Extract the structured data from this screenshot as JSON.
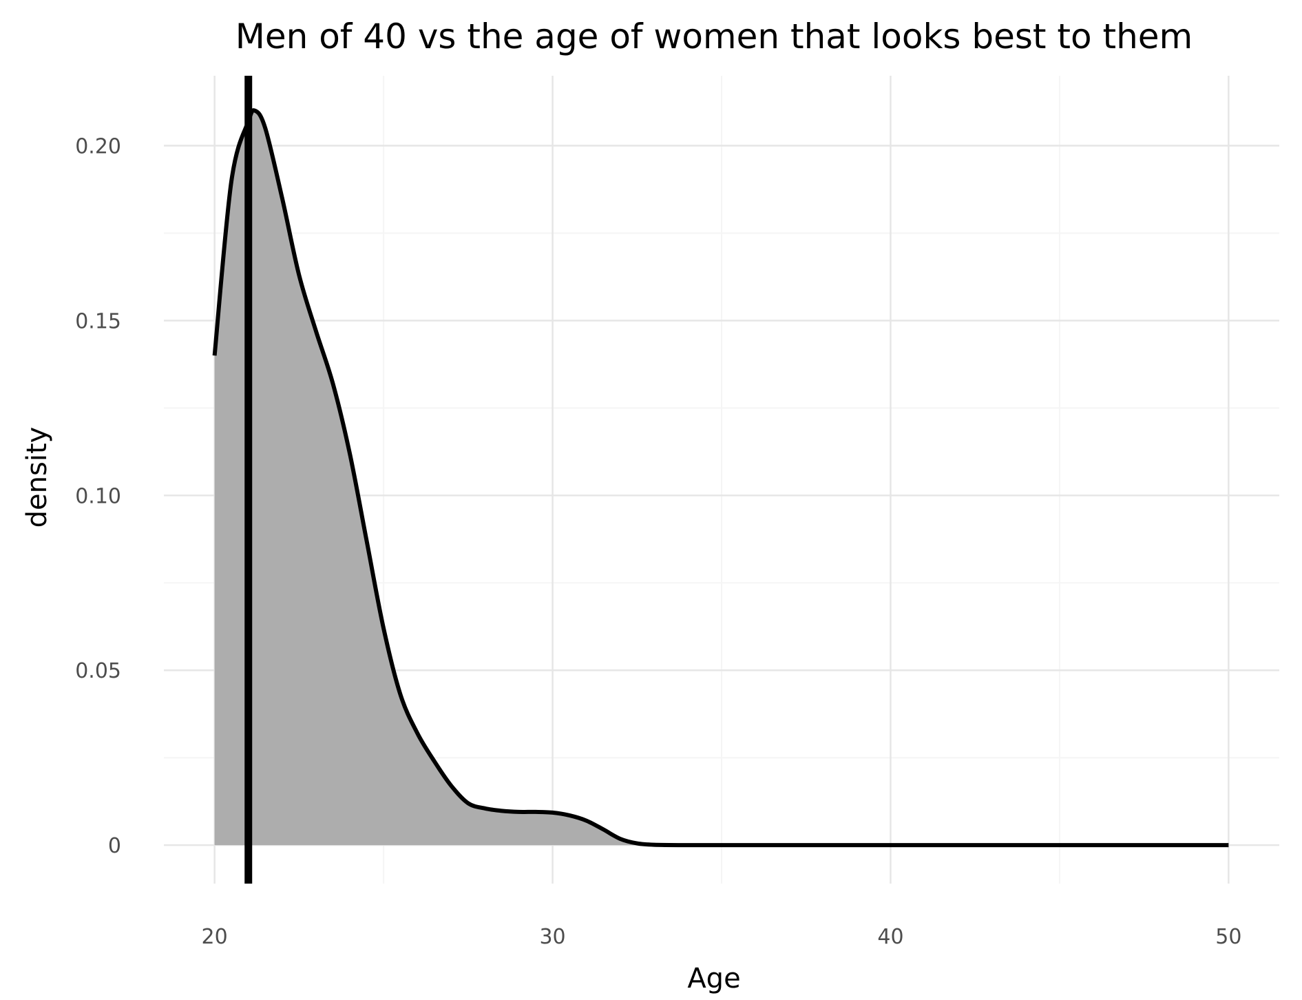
{
  "chart_data": {
    "type": "area",
    "title": "Men of 40 vs the age of women that looks best to them",
    "xlabel": "Age",
    "ylabel": "density",
    "xlim": [
      20,
      50
    ],
    "ylim": [
      -0.011,
      0.22
    ],
    "x_ticks": [
      20,
      30,
      40,
      50
    ],
    "x_tick_labels": [
      "20",
      "30",
      "40",
      "50"
    ],
    "y_ticks": [
      0,
      0.05,
      0.1,
      0.15,
      0.2
    ],
    "y_tick_labels": [
      "0",
      "0.05",
      "0.10",
      "0.15",
      "0.20"
    ],
    "grid": true,
    "legend": "none",
    "series": [
      {
        "x": [
          20,
          20.5,
          21,
          21.2,
          21.5,
          22,
          22.5,
          23,
          23.5,
          24,
          24.5,
          25,
          25.5,
          26,
          26.5,
          27,
          27.5,
          28,
          28.5,
          29,
          29.5,
          30,
          30.5,
          31,
          31.5,
          32,
          32.5,
          33,
          34,
          36,
          40,
          45,
          50
        ],
        "y": [
          0.14,
          0.19,
          0.207,
          0.21,
          0.205,
          0.185,
          0.163,
          0.147,
          0.132,
          0.112,
          0.087,
          0.062,
          0.043,
          0.032,
          0.024,
          0.017,
          0.012,
          0.0105,
          0.0098,
          0.0095,
          0.0095,
          0.0093,
          0.0085,
          0.007,
          0.0045,
          0.0018,
          0.0005,
          0.0001,
          0,
          0,
          0,
          0,
          0
        ],
        "fill_color": "#adadad",
        "line_color": "#000000"
      }
    ],
    "vline": {
      "x": 21,
      "color": "#000000"
    }
  }
}
